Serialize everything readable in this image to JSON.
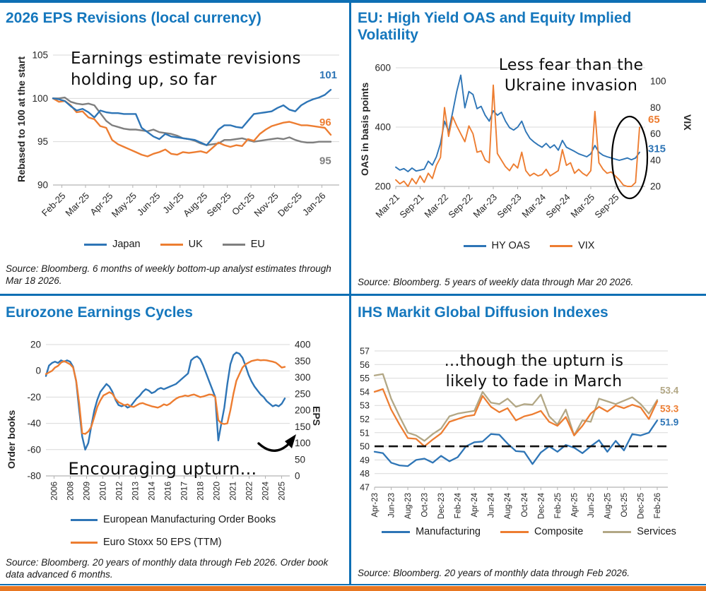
{
  "page": {
    "accent_blue": "#0e6fb4",
    "footer_orange": "#e87722",
    "title_blue": "#1577bd"
  },
  "chart_data": [
    {
      "id": "eps-revisions",
      "type": "line",
      "title": "2026 EPS Revisions (local currency)",
      "annotation": "Earnings estimate revisions\nholding up, so far",
      "ylabel": "Rebased to 100 at the start",
      "ylim": [
        90,
        105
      ],
      "yticks": [
        90,
        95,
        100,
        105
      ],
      "x_ticks": [
        "Feb-25",
        "Mar-25",
        "Apr-25",
        "May-25",
        "Jun-25",
        "Jul-25",
        "Aug-25",
        "Sep-25",
        "Oct-25",
        "Nov-25",
        "Dec-25",
        "Jan-26"
      ],
      "grid": true,
      "legend_position": "bottom",
      "series": [
        {
          "name": "Japan",
          "color": "#2e75b6",
          "end_label": "101",
          "values": [
            100,
            99.9,
            99.7,
            99.1,
            98.6,
            98.8,
            98.4,
            97.8,
            98.6,
            98.4,
            98.3,
            98.3,
            98.2,
            98.2,
            98.2,
            96.6,
            96.1,
            95.6,
            95.3,
            95.9,
            95.6,
            95.5,
            95.4,
            95.3,
            95.2,
            94.9,
            94.6,
            95.4,
            96.4,
            96.9,
            96.9,
            96.7,
            96.6,
            97.4,
            98.2,
            98.3,
            98.4,
            98.5,
            98.9,
            99.2,
            98.7,
            98.5,
            99.2,
            99.6,
            99.9,
            100.1,
            100.4,
            101
          ]
        },
        {
          "name": "UK",
          "color": "#ed7d31",
          "end_label": "96",
          "values": [
            100,
            99.6,
            99.7,
            99.2,
            98.4,
            98.5,
            97.8,
            97.6,
            96.8,
            96.6,
            95.2,
            94.7,
            94.4,
            94.1,
            93.8,
            93.5,
            93.3,
            93.6,
            93.8,
            94.1,
            93.6,
            93.5,
            93.8,
            93.7,
            93.8,
            93.9,
            93.7,
            94.3,
            94.9,
            94.6,
            94.4,
            94.6,
            94.5,
            95.3,
            95.1,
            95.9,
            96.4,
            96.8,
            97,
            97.2,
            97.3,
            97.1,
            96.9,
            96.9,
            96.8,
            96.7,
            96.6,
            95.8
          ]
        },
        {
          "name": "EU",
          "color": "#7f7f7f",
          "end_label": "95",
          "values": [
            100,
            100,
            100.1,
            99.6,
            99.4,
            99.3,
            99.4,
            99.2,
            98.3,
            97.4,
            96.9,
            96.7,
            96.5,
            96.4,
            96.4,
            96.3,
            96.2,
            96.4,
            96.1,
            96,
            95.9,
            95.7,
            95.4,
            95.3,
            95.1,
            94.8,
            94.6,
            94.7,
            94.8,
            95.2,
            95.2,
            95.3,
            95.4,
            95.2,
            95,
            95.1,
            95.2,
            95.3,
            95.4,
            95.3,
            95.5,
            95.2,
            95,
            94.9,
            94.9,
            95,
            95,
            95
          ]
        }
      ],
      "source": "Source: Bloomberg. 6 months of weekly bottom-up analyst estimates through Mar 18 2026."
    },
    {
      "id": "hy-oas-vix",
      "type": "line",
      "title": "EU: High Yield OAS and Equity Implied Volatility",
      "annotation": "Less fear than the\nUkraine invasion",
      "highlight": "ellipse around final months",
      "ylabel_left": "OAS in basis points",
      "ylabel_right": "VIX",
      "ylim_left": [
        200,
        638
      ],
      "yticks_left": [
        200,
        400,
        600
      ],
      "ylim_right": [
        20,
        118.8
      ],
      "yticks_right": [
        20,
        40,
        60,
        80,
        100
      ],
      "x_ticks": [
        "Mar-21",
        "Sep-21",
        "Mar-22",
        "Sep-22",
        "Mar-23",
        "Sep-23",
        "Mar-24",
        "Sep-24",
        "Mar-25",
        "Sep-25"
      ],
      "series": [
        {
          "name": "HY OAS",
          "axis": "left",
          "color": "#2e75b6",
          "end_label": "315",
          "values": [
            265,
            255,
            260,
            250,
            262,
            252,
            255,
            258,
            285,
            272,
            300,
            345,
            420,
            385,
            450,
            520,
            575,
            465,
            520,
            510,
            462,
            470,
            440,
            420,
            455,
            440,
            450,
            420,
            398,
            390,
            400,
            420,
            385,
            362,
            350,
            340,
            332,
            345,
            330,
            340,
            322,
            355,
            332,
            325,
            318,
            310,
            305,
            300,
            310,
            338,
            315,
            305,
            300,
            296,
            292,
            288,
            292,
            296,
            290,
            296,
            315
          ]
        },
        {
          "name": "VIX",
          "axis": "right",
          "color": "#ed7d31",
          "end_label": "65",
          "values": [
            25,
            22,
            24,
            20,
            26,
            22,
            28,
            23,
            30,
            26,
            36,
            42,
            80,
            58,
            73,
            66,
            60,
            54,
            66,
            60,
            46,
            47,
            40,
            38,
            97,
            45,
            40,
            35,
            32,
            37,
            34,
            46,
            32,
            28,
            30,
            28,
            29,
            33,
            28,
            30,
            32,
            48,
            36,
            38,
            30,
            33,
            30,
            28,
            32,
            77,
            38,
            33,
            30,
            31,
            28,
            25,
            21,
            20,
            20,
            23,
            65
          ]
        }
      ],
      "source": "Source: Bloomberg. 5 years of weekly data through Mar 20 2026."
    },
    {
      "id": "eurozone-earnings-cycles",
      "type": "line",
      "title": "Eurozone Earnings Cycles",
      "annotation": "Encouraging upturn...",
      "ylabel_left": "Order books",
      "ylabel_right": "EPS",
      "ylim_left": [
        -80,
        20
      ],
      "yticks_left": [
        20,
        0,
        -20,
        -40,
        -60,
        -80
      ],
      "ylim_right": [
        0,
        400
      ],
      "yticks_right": [
        400,
        350,
        300,
        250,
        200,
        150,
        100,
        50,
        0
      ],
      "x_ticks": [
        "2006",
        "2008",
        "2009",
        "2010",
        "2012",
        "2013",
        "2014",
        "2016",
        "2017",
        "2018",
        "2020",
        "2021",
        "2022",
        "2024",
        "2025"
      ],
      "series": [
        {
          "name": "European Manufacturing Order Books",
          "axis": "left",
          "color": "#2e75b6",
          "values": [
            -4,
            4,
            6,
            7,
            6,
            8,
            7,
            8,
            7,
            3,
            -8,
            -30,
            -50,
            -60,
            -55,
            -42,
            -30,
            -22,
            -16,
            -13,
            -10,
            -12,
            -16,
            -22,
            -26,
            -27,
            -26,
            -28,
            -27,
            -24,
            -21,
            -19,
            -16,
            -14,
            -15,
            -17,
            -16,
            -14,
            -13,
            -14,
            -13,
            -12,
            -11,
            -10,
            -8,
            -6,
            -4,
            -2,
            8,
            10,
            11,
            9,
            4,
            -2,
            -8,
            -14,
            -20,
            -53,
            -40,
            -28,
            -10,
            5,
            12,
            14,
            13,
            10,
            4,
            -3,
            -8,
            -12,
            -15,
            -18,
            -20,
            -23,
            -25,
            -27,
            -26,
            -27,
            -25,
            -21
          ]
        },
        {
          "name": "Euro Stoxx 50 EPS (TTM)",
          "axis": "right",
          "color": "#ed7d31",
          "values": [
            310,
            315,
            320,
            330,
            335,
            345,
            350,
            345,
            340,
            330,
            290,
            220,
            130,
            128,
            135,
            150,
            180,
            210,
            230,
            245,
            250,
            255,
            250,
            235,
            225,
            220,
            215,
            218,
            212,
            210,
            215,
            220,
            222,
            218,
            215,
            212,
            210,
            208,
            212,
            218,
            215,
            220,
            228,
            235,
            240,
            242,
            245,
            243,
            246,
            248,
            244,
            240,
            242,
            245,
            248,
            247,
            240,
            170,
            160,
            158,
            160,
            200,
            250,
            290,
            310,
            330,
            340,
            345,
            350,
            352,
            354,
            352,
            353,
            352,
            350,
            348,
            345,
            338,
            330,
            332
          ]
        }
      ],
      "source": "Source: Bloomberg. 20 years of monthly data through Feb 2026. Order book data advanced 6 months."
    },
    {
      "id": "ihs-markit-diffusion",
      "type": "line",
      "title": "IHS Markit Global Diffusion Indexes",
      "annotation": "...though the upturn is\nlikely to fade in March",
      "ylim": [
        47,
        57
      ],
      "yticks": [
        47,
        48,
        49,
        50,
        51,
        52,
        53,
        54,
        55,
        56,
        57
      ],
      "reference_line": 50,
      "x_ticks": [
        "Apr-23",
        "Jun-23",
        "Aug-23",
        "Oct-23",
        "Dec-23",
        "Feb-24",
        "Apr-24",
        "Jun-24",
        "Aug-24",
        "Oct-24",
        "Dec-24",
        "Feb-25",
        "Apr-25",
        "Jun-25",
        "Aug-25",
        "Oct-25",
        "Dec-25",
        "Feb-26"
      ],
      "series": [
        {
          "name": "Manufacturing",
          "color": "#2e75b6",
          "end_label": "51.9",
          "values": [
            49.6,
            49.5,
            48.8,
            48.6,
            48.55,
            49,
            49.1,
            48.8,
            49.3,
            48.9,
            49.2,
            50,
            50.3,
            50.35,
            50.9,
            50.85,
            50.2,
            49.65,
            49.6,
            48.7,
            49.55,
            50,
            49.6,
            50.1,
            49.9,
            49.5,
            50,
            50.45,
            49.6,
            50.4,
            49.7,
            50.9,
            50.8,
            51,
            51.9
          ]
        },
        {
          "name": "Composite",
          "color": "#ed7d31",
          "end_label": "53.3",
          "values": [
            54,
            54.2,
            52.7,
            51.6,
            50.6,
            50.55,
            50,
            50.5,
            50.95,
            51.8,
            52,
            52.2,
            52.3,
            53.7,
            52.9,
            52.5,
            52.8,
            51.9,
            52.2,
            52.35,
            52.6,
            51.8,
            51.5,
            52.15,
            50.8,
            51.5,
            52.4,
            52.9,
            52.55,
            53,
            52.8,
            53.05,
            52.85,
            52,
            53.3
          ]
        },
        {
          "name": "Services",
          "color": "#b2a785",
          "end_label": "53.4",
          "values": [
            55.2,
            55.3,
            53.5,
            52.2,
            51,
            50.8,
            50.4,
            50.9,
            51.3,
            52.2,
            52.4,
            52.5,
            52.6,
            54,
            53.2,
            53.1,
            53.5,
            52.9,
            53.1,
            53.05,
            53.8,
            52.2,
            51.6,
            52.7,
            50.8,
            51.9,
            51.8,
            53.5,
            53.3,
            53.1,
            53.35,
            53.6,
            53.1,
            52.4,
            53.4
          ]
        }
      ],
      "source": "Source: Bloomberg. 20 years of monthly data through Feb 2026."
    }
  ]
}
